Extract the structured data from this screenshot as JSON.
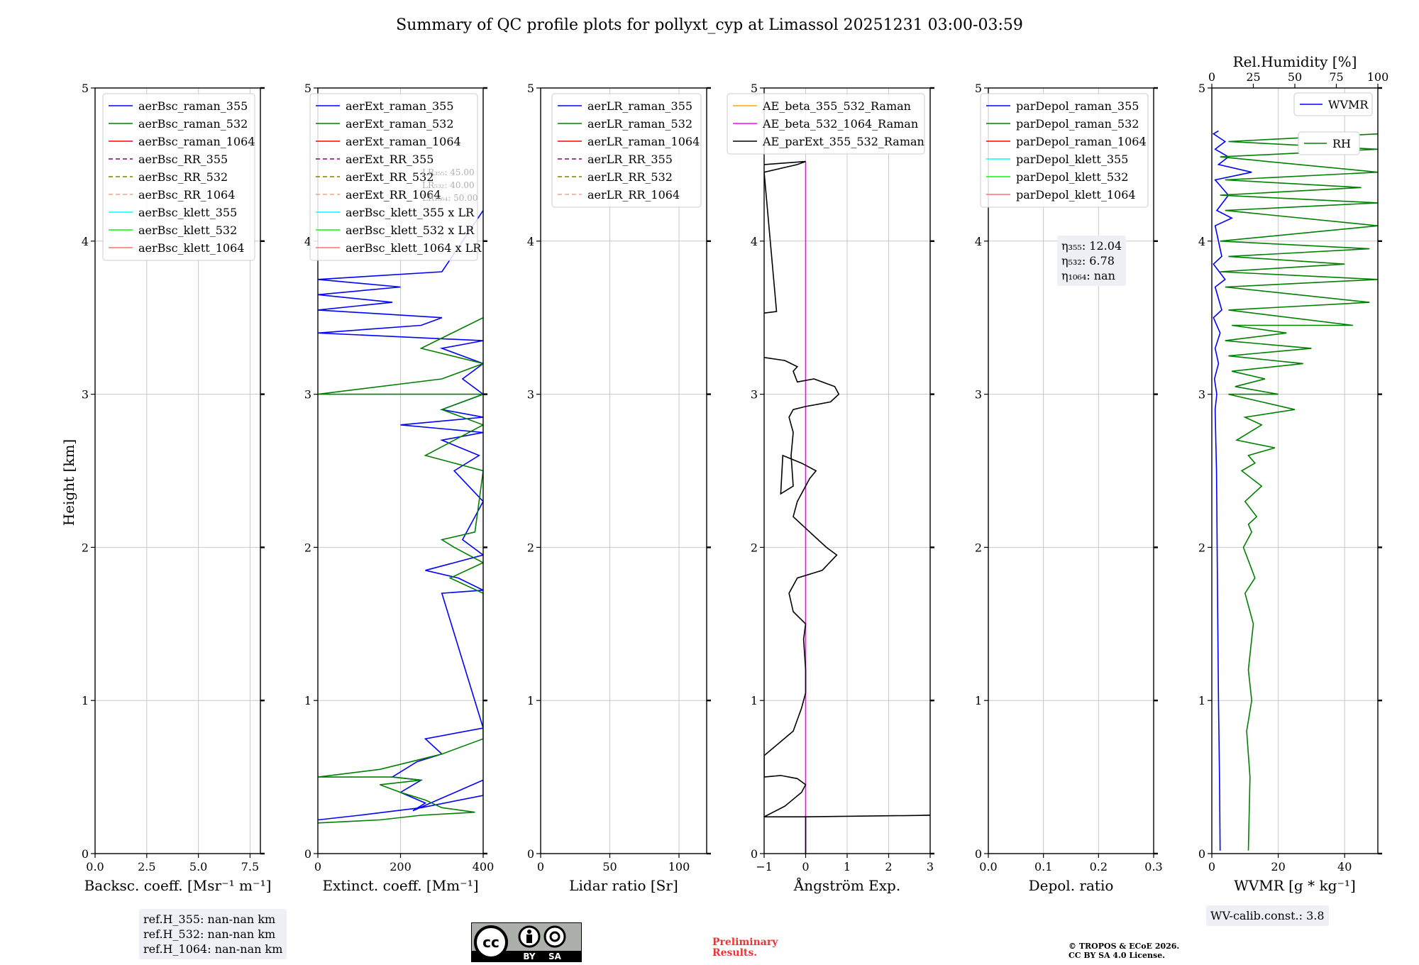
{
  "chart_data": [
    {
      "type": "line",
      "title": "Summary of QC profile plots for pollyxt_cyp at Limassol 20251231 03:00-03:59",
      "xlabel": "Backsc. coeff. [Msr⁻¹ m⁻¹]",
      "ylabel": "Height [km]",
      "xlim": [
        0,
        8
      ],
      "ylim": [
        0,
        5
      ],
      "xticks": [
        "0.0",
        "2.5",
        "5.0",
        "7.5"
      ],
      "xtick_values": [
        0,
        2.5,
        5,
        7.5
      ],
      "yticks": [
        "0",
        "1",
        "2",
        "3",
        "4",
        "5"
      ],
      "legend_position": "top-right",
      "legend": [
        {
          "label": "aerBsc_raman_355",
          "color": "#0000ff",
          "dash": false
        },
        {
          "label": "aerBsc_raman_532",
          "color": "#008000",
          "dash": false
        },
        {
          "label": "aerBsc_raman_1064",
          "color": "#ff0000",
          "dash": false
        },
        {
          "label": "aerBsc_RR_355",
          "color": "#800080",
          "dash": true
        },
        {
          "label": "aerBsc_RR_532",
          "color": "#808000",
          "dash": true
        },
        {
          "label": "aerBsc_RR_1064",
          "color": "#ffa07a",
          "dash": true
        },
        {
          "label": "aerBsc_klett_355",
          "color": "#00ffff",
          "dash": false
        },
        {
          "label": "aerBsc_klett_532",
          "color": "#00ff00",
          "dash": false
        },
        {
          "label": "aerBsc_klett_1064",
          "color": "#ff7070",
          "dash": false
        }
      ],
      "series": [],
      "annotation": [
        "ref.H_355: nan-nan km",
        "ref.H_532: nan-nan km",
        "ref.H_1064: nan-nan km"
      ]
    },
    {
      "type": "line",
      "xlabel": "Extinct. coeff. [Mm⁻¹]",
      "xlim": [
        0,
        400
      ],
      "ylim": [
        0,
        5
      ],
      "xticks": [
        "0",
        "200",
        "400"
      ],
      "xtick_values": [
        0,
        200,
        400
      ],
      "yticks": [
        "0",
        "1",
        "2",
        "3",
        "4",
        "5"
      ],
      "legend_position": "top-right",
      "legend": [
        {
          "label": "aerExt_raman_355",
          "color": "#0000ff",
          "dash": false
        },
        {
          "label": "aerExt_raman_532",
          "color": "#008000",
          "dash": false
        },
        {
          "label": "aerExt_raman_1064",
          "color": "#ff0000",
          "dash": false
        },
        {
          "label": "aerExt_RR_355",
          "color": "#800080",
          "dash": true
        },
        {
          "label": "aerExt_RR_532",
          "color": "#808000",
          "dash": true
        },
        {
          "label": "aerExt_RR_1064",
          "color": "#ffa07a",
          "dash": true
        },
        {
          "label": "aerBsc_klett_355 x LR",
          "color": "#00ffff",
          "dash": false
        },
        {
          "label": "aerBsc_klett_532 x LR",
          "color": "#00ff00",
          "dash": false
        },
        {
          "label": "aerBsc_klett_1064 x LR",
          "color": "#ff7070",
          "dash": false
        }
      ],
      "lr_note": [
        "LR₃₅₅: 45.00",
        "LR₅₃₂: 40.00",
        "LR₁₀₆₄: 50.00"
      ],
      "series": [
        {
          "name": "aerExt_raman_355",
          "color": "#0000ff",
          "x": [
            0,
            100,
            250,
            400,
            400,
            230,
            260,
            200,
            250,
            180,
            240,
            300,
            260,
            400,
            300,
            400,
            340,
            260,
            400,
            350,
            400,
            330,
            390,
            300,
            400,
            200,
            400,
            300,
            400,
            350,
            400,
            300,
            400,
            0,
            250,
            300,
            0,
            180,
            0,
            200,
            0,
            300,
            400
          ],
          "y": [
            0.22,
            0.25,
            0.3,
            0.38,
            0.48,
            0.28,
            0.33,
            0.4,
            0.48,
            0.5,
            0.6,
            0.65,
            0.75,
            0.82,
            1.7,
            1.72,
            1.8,
            1.85,
            1.95,
            2.05,
            2.3,
            2.5,
            2.6,
            2.7,
            2.75,
            2.8,
            2.85,
            2.9,
            3.0,
            3.1,
            3.2,
            3.3,
            3.35,
            3.4,
            3.45,
            3.5,
            3.55,
            3.6,
            3.65,
            3.7,
            3.75,
            3.8,
            4.2
          ]
        },
        {
          "name": "aerExt_raman_532",
          "color": "#008000",
          "x": [
            0,
            150,
            250,
            380,
            300,
            260,
            200,
            150,
            250,
            180,
            0,
            150,
            300,
            400,
            400,
            320,
            400,
            330,
            300,
            380,
            400,
            260,
            400,
            300,
            400,
            0,
            300,
            400,
            250,
            400
          ],
          "y": [
            0.2,
            0.22,
            0.25,
            0.27,
            0.3,
            0.35,
            0.4,
            0.45,
            0.48,
            0.5,
            0.5,
            0.55,
            0.65,
            0.75,
            1.7,
            1.8,
            1.9,
            2.0,
            2.05,
            2.1,
            2.5,
            2.6,
            2.8,
            2.9,
            3.0,
            3.0,
            3.1,
            3.2,
            3.3,
            3.5
          ]
        }
      ]
    },
    {
      "type": "line",
      "xlabel": "Lidar ratio [Sr]",
      "xlim": [
        0,
        120
      ],
      "ylim": [
        0,
        5
      ],
      "xticks": [
        "0",
        "50",
        "100"
      ],
      "xtick_values": [
        0,
        50,
        100
      ],
      "yticks": [
        "0",
        "1",
        "2",
        "3",
        "4",
        "5"
      ],
      "legend_position": "top-right",
      "legend": [
        {
          "label": "aerLR_raman_355",
          "color": "#0000ff",
          "dash": false
        },
        {
          "label": "aerLR_raman_532",
          "color": "#008000",
          "dash": false
        },
        {
          "label": "aerLR_raman_1064",
          "color": "#ff0000",
          "dash": false
        },
        {
          "label": "aerLR_RR_355",
          "color": "#800080",
          "dash": true
        },
        {
          "label": "aerLR_RR_532",
          "color": "#808000",
          "dash": true
        },
        {
          "label": "aerLR_RR_1064",
          "color": "#ffa07a",
          "dash": true
        }
      ],
      "series": []
    },
    {
      "type": "line",
      "xlabel": "Ångström Exp.",
      "xlim": [
        -1,
        3
      ],
      "ylim": [
        0,
        5
      ],
      "xticks": [
        "−1",
        "0",
        "1",
        "2",
        "3"
      ],
      "xtick_values": [
        -1,
        0,
        1,
        2,
        3
      ],
      "yticks": [
        "0",
        "1",
        "2",
        "3",
        "4",
        "5"
      ],
      "legend_position": "top-right",
      "legend": [
        {
          "label": "AE_beta_355_532_Raman",
          "color": "#ffa500",
          "dash": false
        },
        {
          "label": "AE_beta_532_1064_Raman",
          "color": "#ff00ff",
          "dash": false
        },
        {
          "label": "AE_parExt_355_532_Raman",
          "color": "#000000",
          "dash": false
        }
      ],
      "series": [
        {
          "name": "AE_beta_532_1064_Raman",
          "color": "#ff00ff",
          "x": [
            0,
            0
          ],
          "y": [
            0,
            4.52
          ]
        },
        {
          "name": "AE_parExt_355_532_Raman",
          "color": "#000000",
          "x": [
            0,
            0,
            3,
            3,
            -0.1,
            -1,
            -0.5,
            -0.1,
            0,
            -0.2,
            -0.6,
            -1,
            -1,
            -0.3,
            -0.1,
            0,
            0,
            -0.05,
            0,
            -0.3,
            -0.4,
            -0.2,
            0.4,
            0.75,
            0.5,
            0.1,
            -0.3,
            -0.2,
            0.1,
            0.25,
            -0.1,
            -0.55,
            -0.6,
            -0.3,
            -0.35,
            -0.3,
            -0.4,
            -0.3,
            0,
            0.6,
            0.8,
            0.7,
            0.2,
            -0.2,
            -0.3,
            -0.2,
            -0.5,
            -1
          ],
          "y": [
            0,
            0.24,
            0.25,
            0.25,
            0.24,
            0.24,
            0.31,
            0.4,
            0.45,
            0.49,
            0.51,
            0.5,
            0.64,
            0.8,
            0.95,
            1.05,
            1.2,
            1.4,
            1.5,
            1.58,
            1.7,
            1.8,
            1.85,
            1.95,
            2.0,
            2.1,
            2.2,
            2.3,
            2.45,
            2.5,
            2.55,
            2.6,
            2.35,
            2.4,
            2.6,
            2.75,
            2.85,
            2.9,
            2.92,
            2.95,
            3.0,
            3.05,
            3.1,
            3.08,
            3.15,
            3.18,
            3.22,
            3.24
          ]
        },
        {
          "name": "AE_parExt_355_532_Raman_upper",
          "color": "#000000",
          "x": [
            -1,
            -0.7,
            -1,
            -0.2,
            0,
            -1
          ],
          "y": [
            3.53,
            3.54,
            4.45,
            4.5,
            4.52,
            4.5
          ]
        }
      ]
    },
    {
      "type": "line",
      "xlabel": "Depol. ratio",
      "xlim": [
        0,
        0.3
      ],
      "ylim": [
        0,
        5
      ],
      "xticks": [
        "0.0",
        "0.1",
        "0.2",
        "0.3"
      ],
      "xtick_values": [
        0,
        0.1,
        0.2,
        0.3
      ],
      "yticks": [
        "0",
        "1",
        "2",
        "3",
        "4",
        "5"
      ],
      "legend_position": "top-right",
      "legend": [
        {
          "label": "parDepol_raman_355",
          "color": "#0000ff",
          "dash": false
        },
        {
          "label": "parDepol_raman_532",
          "color": "#008000",
          "dash": false
        },
        {
          "label": "parDepol_raman_1064",
          "color": "#ff0000",
          "dash": false
        },
        {
          "label": "parDepol_klett_355",
          "color": "#00ffff",
          "dash": false
        },
        {
          "label": "parDepol_klett_532",
          "color": "#00ff00",
          "dash": false
        },
        {
          "label": "parDepol_klett_1064",
          "color": "#ff7070",
          "dash": false
        }
      ],
      "series": [],
      "annotation": [
        "η₃₅₅: 12.04",
        "η₅₃₂: 6.78",
        "η₁₀₆₄: nan"
      ]
    },
    {
      "type": "line",
      "xlabel": "WVMR [g * kg⁻¹]",
      "x2label": "Rel.Humidity [%]",
      "xlim": [
        0,
        50
      ],
      "x2lim": [
        0,
        100
      ],
      "ylim": [
        0,
        5
      ],
      "xticks": [
        "0",
        "20",
        "40"
      ],
      "xtick_values": [
        0,
        20,
        40
      ],
      "x2ticks": [
        "0",
        "25",
        "50",
        "75",
        "100"
      ],
      "x2tick_values": [
        0,
        25,
        50,
        75,
        100
      ],
      "yticks": [
        "0",
        "1",
        "2",
        "3",
        "4",
        "5"
      ],
      "legend_position": "top-right",
      "legend": [
        {
          "label": "WVMR",
          "color": "#0000ff",
          "dash": false
        },
        {
          "label": "RH",
          "color": "#008000",
          "dash": false
        }
      ],
      "series": [
        {
          "name": "WVMR",
          "axis": "bottom",
          "color": "#0000ff",
          "x": [
            2.5,
            2.3,
            2.0,
            1.8,
            1.6,
            1.5,
            1.4,
            1.2,
            1.0,
            1.5,
            0.8,
            2.0,
            1.0,
            2.5,
            0.5,
            3.0,
            1.0,
            4.0,
            0.5,
            3.0,
            1.0,
            6.0,
            1.5,
            5.0,
            1.0,
            12.0,
            2.0,
            5.0,
            1.0,
            4.0,
            0.5,
            2.0
          ],
          "y": [
            0.02,
            0.5,
            1.0,
            1.5,
            2.0,
            2.3,
            2.5,
            2.7,
            2.9,
            3.0,
            3.1,
            3.2,
            3.3,
            3.4,
            3.5,
            3.55,
            3.7,
            3.75,
            3.85,
            3.9,
            4.1,
            4.15,
            4.2,
            4.3,
            4.4,
            4.45,
            4.5,
            4.55,
            4.6,
            4.65,
            4.7,
            4.72
          ]
        },
        {
          "name": "RH",
          "axis": "top",
          "color": "#008000",
          "x": [
            22,
            23,
            21,
            24,
            22,
            25,
            20,
            26,
            19,
            24,
            22,
            27,
            20,
            30,
            18,
            26,
            22,
            38,
            15,
            30,
            20,
            50,
            10,
            40,
            14,
            32,
            12,
            55,
            10,
            60,
            8,
            45,
            12,
            85,
            10,
            95,
            8,
            100,
            5,
            80,
            10,
            95,
            5,
            100,
            8,
            100,
            5,
            90,
            8,
            100,
            5,
            100,
            10,
            100
          ],
          "y": [
            0.02,
            0.5,
            0.8,
            1.0,
            1.2,
            1.5,
            1.7,
            1.8,
            2.0,
            2.1,
            2.15,
            2.2,
            2.3,
            2.4,
            2.5,
            2.55,
            2.6,
            2.65,
            2.7,
            2.8,
            2.85,
            2.9,
            3.0,
            3.0,
            3.05,
            3.1,
            3.15,
            3.2,
            3.25,
            3.3,
            3.35,
            3.4,
            3.45,
            3.45,
            3.55,
            3.6,
            3.7,
            3.75,
            3.8,
            3.85,
            3.9,
            3.95,
            4.0,
            4.1,
            4.2,
            4.25,
            4.3,
            4.35,
            4.4,
            4.45,
            4.55,
            4.6,
            4.65,
            4.7
          ]
        }
      ],
      "annotation": "WV-calib.const.: 3.8"
    }
  ],
  "footer": {
    "preliminary": [
      "Preliminary",
      "Results."
    ],
    "copyright": [
      "© TROPOS & ECoE 2026.",
      "CC BY SA 4.0 License."
    ],
    "license_badge": [
      "cc",
      "BY",
      "SA"
    ]
  }
}
